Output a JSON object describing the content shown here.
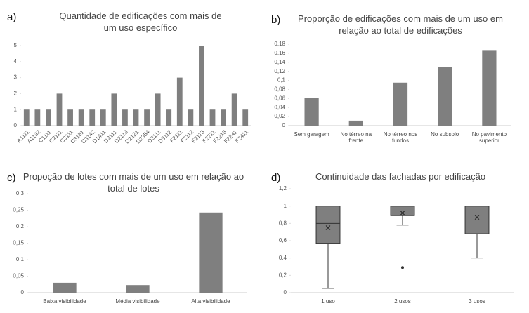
{
  "chart_data": [
    {
      "type": "bar",
      "panel": "a)",
      "title": "Quantidade de edificações com mais de um uso específico",
      "categories": [
        "A1111",
        "A1132",
        "C1111",
        "C2111",
        "C3111",
        "C3131",
        "C3142",
        "D1411",
        "D2111",
        "D2113",
        "D2121",
        "D2354",
        "D3111",
        "D3112",
        "F2111",
        "F2112",
        "F2113",
        "F2211",
        "F2213",
        "F2241",
        "F2411"
      ],
      "values": [
        1,
        1,
        1,
        2,
        1,
        1,
        1,
        1,
        2,
        1,
        1,
        1,
        2,
        1,
        3,
        1,
        5,
        1,
        1,
        2,
        1
      ],
      "color": "#7f7f7f",
      "ylim": [
        0,
        5
      ],
      "yticks": [
        0,
        1,
        2,
        3,
        4,
        5
      ]
    },
    {
      "type": "bar",
      "panel": "b)",
      "title": "Proporção de edificações com mais de um uso em relação ao total de edificações",
      "categories": [
        "Sem garagem",
        "No térreo na frente",
        "No térreo nos fundos",
        "No subsolo",
        "No pavimento superior"
      ],
      "values": [
        0.062,
        0.011,
        0.095,
        0.13,
        0.167
      ],
      "color": "#7f7f7f",
      "ylim": [
        0,
        0.18
      ],
      "yticks": [
        0,
        {
          "value": 0.02,
          "label": "0,02"
        },
        {
          "value": 0.04,
          "label": "0,04"
        },
        {
          "value": 0.06,
          "label": "0,06"
        },
        {
          "value": 0.08,
          "label": "0,08"
        },
        {
          "value": 0.1,
          "label": "0,1"
        },
        {
          "value": 0.12,
          "label": "0,12"
        },
        {
          "value": 0.14,
          "label": "0,14"
        },
        {
          "value": 0.16,
          "label": "0,16"
        },
        {
          "value": 0.18,
          "label": "0,18"
        }
      ]
    },
    {
      "type": "bar",
      "panel": "c)",
      "title": "Propoção de lotes com mais de um uso em relação ao total de lotes",
      "categories": [
        "Baixa visibilidade",
        "Média visibilidade",
        "Alta visibilidade"
      ],
      "values": [
        0.03,
        0.023,
        0.243
      ],
      "color": "#7f7f7f",
      "ylim": [
        0,
        0.3
      ],
      "yticks": [
        0,
        {
          "value": 0.05,
          "label": "0,05"
        },
        {
          "value": 0.1,
          "label": "0,1"
        },
        {
          "value": 0.15,
          "label": "0,15"
        },
        {
          "value": 0.2,
          "label": "0,2"
        },
        {
          "value": 0.25,
          "label": "0,25"
        },
        {
          "value": 0.3,
          "label": "0,3"
        }
      ]
    },
    {
      "type": "box",
      "panel": "d)",
      "title": "Continuidade das fachadas por edificação",
      "categories": [
        "1 uso",
        "2 usos",
        "3 usos"
      ],
      "boxes": [
        {
          "min": 0.05,
          "q1": 0.57,
          "median": 0.8,
          "q3": 1,
          "max": 1,
          "mean": 0.75,
          "outliers": []
        },
        {
          "min": 0.78,
          "q1": 0.89,
          "median": 1,
          "q3": 1,
          "max": 1,
          "mean": 0.92,
          "outliers": [
            0.29
          ]
        },
        {
          "min": 0.4,
          "q1": 0.68,
          "median": 1,
          "q3": 1,
          "max": 1,
          "mean": 0.87,
          "outliers": []
        }
      ],
      "color": "#7f7f7f",
      "ylim": [
        0,
        1.2
      ],
      "yticks": [
        0,
        {
          "value": 0.2,
          "label": "0,2"
        },
        {
          "value": 0.4,
          "label": "0,4"
        },
        {
          "value": 0.6,
          "label": "0,6"
        },
        {
          "value": 0.8,
          "label": "0,8"
        },
        1,
        {
          "value": 1.2,
          "label": "1,2"
        }
      ]
    }
  ]
}
